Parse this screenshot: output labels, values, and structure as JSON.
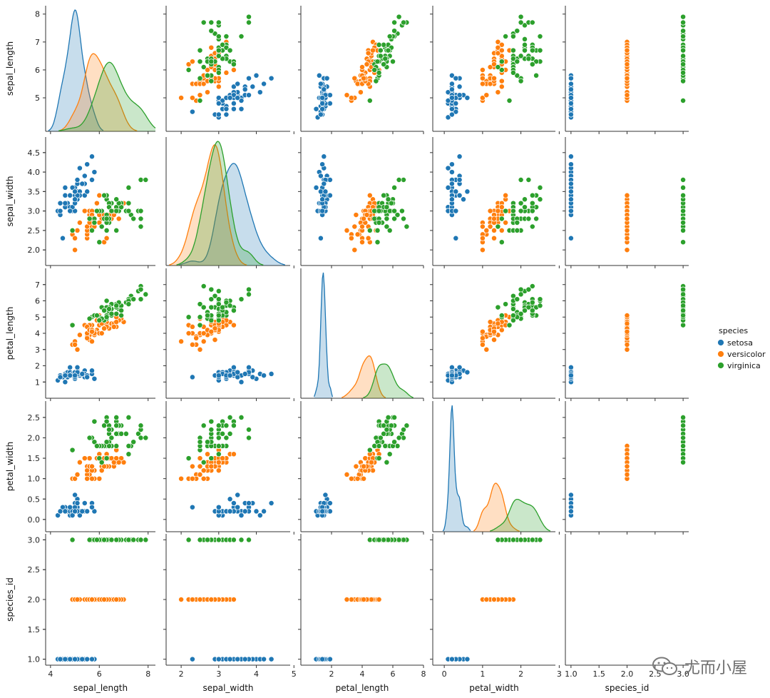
{
  "colors": {
    "setosa": "#1f77b4",
    "versicolor": "#ff7f0e",
    "virginica": "#2ca02c"
  },
  "legend": {
    "title": "species",
    "items": [
      "setosa",
      "versicolor",
      "virginica"
    ]
  },
  "watermark": {
    "text": "尤而小屋",
    "icon": "wechat-icon"
  },
  "chart_data": {
    "type": "scatter",
    "variables": [
      "sepal_length",
      "sepal_width",
      "petal_length",
      "petal_width",
      "species_id"
    ],
    "axis_labels": {
      "sepal_length": "sepal_length",
      "sepal_width": "sepal_width",
      "petal_length": "petal_length",
      "petal_width": "petal_width",
      "species_id": "species_id"
    },
    "ranges": {
      "sepal_length": [
        3.8,
        8.3
      ],
      "sepal_width": [
        1.6,
        4.9
      ],
      "petal_length": [
        0.0,
        8.0
      ],
      "petal_width": [
        -0.3,
        2.9
      ],
      "species_id": [
        0.9,
        3.1
      ]
    },
    "ticks": {
      "sepal_length": [
        4,
        6,
        8
      ],
      "sepal_width": [
        2,
        3,
        4,
        5
      ],
      "petal_length": [
        2,
        4,
        6,
        8
      ],
      "petal_width": [
        0,
        1,
        2,
        3
      ],
      "species_id": [
        1.0,
        1.5,
        2.0,
        2.5,
        3.0
      ]
    },
    "y_ticks": {
      "sepal_length": [
        5,
        6,
        7,
        8
      ],
      "sepal_width": [
        2.0,
        2.5,
        3.0,
        3.5,
        4.0,
        4.5
      ],
      "petal_length": [
        1,
        2,
        3,
        4,
        5,
        6,
        7
      ],
      "petal_width": [
        0.0,
        0.5,
        1.0,
        1.5,
        2.0,
        2.5
      ],
      "species_id": [
        1.0,
        1.5,
        2.0,
        2.5,
        3.0
      ]
    },
    "tick_labels_y": {
      "species_id": [
        "1.0",
        "1.5",
        "2.0",
        "2.5",
        "3.0"
      ],
      "sepal_width": [
        "2.0",
        "2.5",
        "3.0",
        "3.5",
        "4.0",
        "4.5"
      ],
      "petal_width": [
        "0.0",
        "0.5",
        "1.0",
        "1.5",
        "2.0",
        "2.5"
      ]
    },
    "tick_labels_x": {
      "species_id": [
        "1.0",
        "1.5",
        "2.0",
        "2.5",
        "3.0"
      ]
    },
    "series": [
      {
        "name": "setosa",
        "id": 1,
        "points": [
          [
            5.1,
            3.5,
            1.4,
            0.2
          ],
          [
            4.9,
            3.0,
            1.4,
            0.2
          ],
          [
            4.7,
            3.2,
            1.3,
            0.2
          ],
          [
            4.6,
            3.1,
            1.5,
            0.2
          ],
          [
            5.0,
            3.6,
            1.4,
            0.2
          ],
          [
            5.4,
            3.9,
            1.7,
            0.4
          ],
          [
            4.6,
            3.4,
            1.4,
            0.3
          ],
          [
            5.0,
            3.4,
            1.5,
            0.2
          ],
          [
            4.4,
            2.9,
            1.4,
            0.2
          ],
          [
            4.9,
            3.1,
            1.5,
            0.1
          ],
          [
            5.4,
            3.7,
            1.5,
            0.2
          ],
          [
            4.8,
            3.4,
            1.6,
            0.2
          ],
          [
            4.8,
            3.0,
            1.4,
            0.1
          ],
          [
            4.3,
            3.0,
            1.1,
            0.1
          ],
          [
            5.8,
            4.0,
            1.2,
            0.2
          ],
          [
            5.7,
            4.4,
            1.5,
            0.4
          ],
          [
            5.4,
            3.9,
            1.3,
            0.4
          ],
          [
            5.1,
            3.5,
            1.4,
            0.3
          ],
          [
            5.7,
            3.8,
            1.7,
            0.3
          ],
          [
            5.1,
            3.8,
            1.5,
            0.3
          ],
          [
            5.4,
            3.4,
            1.7,
            0.2
          ],
          [
            5.1,
            3.7,
            1.5,
            0.4
          ],
          [
            4.6,
            3.6,
            1.0,
            0.2
          ],
          [
            5.1,
            3.3,
            1.7,
            0.5
          ],
          [
            4.8,
            3.4,
            1.9,
            0.2
          ],
          [
            5.0,
            3.0,
            1.6,
            0.2
          ],
          [
            5.0,
            3.4,
            1.6,
            0.4
          ],
          [
            5.2,
            3.5,
            1.5,
            0.2
          ],
          [
            5.2,
            3.4,
            1.4,
            0.2
          ],
          [
            4.7,
            3.2,
            1.6,
            0.2
          ],
          [
            4.8,
            3.1,
            1.6,
            0.2
          ],
          [
            5.4,
            3.4,
            1.5,
            0.4
          ],
          [
            5.2,
            4.1,
            1.5,
            0.1
          ],
          [
            5.5,
            4.2,
            1.4,
            0.2
          ],
          [
            4.9,
            3.1,
            1.5,
            0.2
          ],
          [
            5.0,
            3.2,
            1.2,
            0.2
          ],
          [
            5.5,
            3.5,
            1.3,
            0.2
          ],
          [
            4.9,
            3.6,
            1.4,
            0.1
          ],
          [
            4.4,
            3.0,
            1.3,
            0.2
          ],
          [
            5.1,
            3.4,
            1.5,
            0.2
          ],
          [
            5.0,
            3.5,
            1.3,
            0.3
          ],
          [
            4.5,
            2.3,
            1.3,
            0.3
          ],
          [
            4.4,
            3.2,
            1.3,
            0.2
          ],
          [
            5.0,
            3.5,
            1.6,
            0.6
          ],
          [
            5.1,
            3.8,
            1.9,
            0.4
          ],
          [
            4.8,
            3.0,
            1.4,
            0.3
          ],
          [
            5.1,
            3.8,
            1.6,
            0.2
          ],
          [
            4.6,
            3.2,
            1.4,
            0.2
          ],
          [
            5.3,
            3.7,
            1.5,
            0.2
          ],
          [
            5.0,
            3.3,
            1.4,
            0.2
          ]
        ]
      },
      {
        "name": "versicolor",
        "id": 2,
        "points": [
          [
            7.0,
            3.2,
            4.7,
            1.4
          ],
          [
            6.4,
            3.2,
            4.5,
            1.5
          ],
          [
            6.9,
            3.1,
            4.9,
            1.5
          ],
          [
            5.5,
            2.3,
            4.0,
            1.3
          ],
          [
            6.5,
            2.8,
            4.6,
            1.5
          ],
          [
            5.7,
            2.8,
            4.5,
            1.3
          ],
          [
            6.3,
            3.3,
            4.7,
            1.6
          ],
          [
            4.9,
            2.4,
            3.3,
            1.0
          ],
          [
            6.6,
            2.9,
            4.6,
            1.3
          ],
          [
            5.2,
            2.7,
            3.9,
            1.4
          ],
          [
            5.0,
            2.0,
            3.5,
            1.0
          ],
          [
            5.9,
            3.0,
            4.2,
            1.5
          ],
          [
            6.0,
            2.2,
            4.0,
            1.0
          ],
          [
            6.1,
            2.9,
            4.7,
            1.4
          ],
          [
            5.6,
            2.9,
            3.6,
            1.3
          ],
          [
            6.7,
            3.1,
            4.4,
            1.4
          ],
          [
            5.6,
            3.0,
            4.5,
            1.5
          ],
          [
            5.8,
            2.7,
            4.1,
            1.0
          ],
          [
            6.2,
            2.2,
            4.5,
            1.5
          ],
          [
            5.6,
            2.5,
            3.9,
            1.1
          ],
          [
            5.9,
            3.2,
            4.8,
            1.8
          ],
          [
            6.1,
            2.8,
            4.0,
            1.3
          ],
          [
            6.3,
            2.5,
            4.9,
            1.5
          ],
          [
            6.1,
            2.8,
            4.7,
            1.2
          ],
          [
            6.4,
            2.9,
            4.3,
            1.3
          ],
          [
            6.6,
            3.0,
            4.4,
            1.4
          ],
          [
            6.8,
            2.8,
            4.8,
            1.4
          ],
          [
            6.7,
            3.0,
            5.0,
            1.7
          ],
          [
            6.0,
            2.9,
            4.5,
            1.5
          ],
          [
            5.7,
            2.6,
            3.5,
            1.0
          ],
          [
            5.5,
            2.4,
            3.8,
            1.1
          ],
          [
            5.5,
            2.4,
            3.7,
            1.0
          ],
          [
            5.8,
            2.7,
            3.9,
            1.2
          ],
          [
            6.0,
            2.7,
            5.1,
            1.6
          ],
          [
            5.4,
            3.0,
            4.5,
            1.5
          ],
          [
            6.0,
            3.4,
            4.5,
            1.6
          ],
          [
            6.7,
            3.1,
            4.7,
            1.5
          ],
          [
            6.3,
            2.3,
            4.4,
            1.3
          ],
          [
            5.6,
            3.0,
            4.1,
            1.3
          ],
          [
            5.5,
            2.5,
            4.0,
            1.3
          ],
          [
            5.5,
            2.6,
            4.4,
            1.2
          ],
          [
            6.1,
            3.0,
            4.6,
            1.4
          ],
          [
            5.8,
            2.6,
            4.0,
            1.2
          ],
          [
            5.0,
            2.3,
            3.3,
            1.0
          ],
          [
            5.6,
            2.7,
            4.2,
            1.3
          ],
          [
            5.7,
            3.0,
            4.2,
            1.2
          ],
          [
            5.7,
            2.9,
            4.2,
            1.3
          ],
          [
            6.2,
            2.9,
            4.3,
            1.3
          ],
          [
            5.1,
            2.5,
            3.0,
            1.1
          ],
          [
            5.7,
            2.8,
            4.1,
            1.3
          ]
        ]
      },
      {
        "name": "virginica",
        "id": 3,
        "points": [
          [
            6.3,
            3.3,
            6.0,
            2.5
          ],
          [
            5.8,
            2.7,
            5.1,
            1.9
          ],
          [
            7.1,
            3.0,
            5.9,
            2.1
          ],
          [
            6.3,
            2.9,
            5.6,
            1.8
          ],
          [
            6.5,
            3.0,
            5.8,
            2.2
          ],
          [
            7.6,
            3.0,
            6.6,
            2.1
          ],
          [
            4.9,
            2.5,
            4.5,
            1.7
          ],
          [
            7.3,
            2.9,
            6.3,
            1.8
          ],
          [
            6.7,
            2.5,
            5.8,
            1.8
          ],
          [
            7.2,
            3.6,
            6.1,
            2.5
          ],
          [
            6.5,
            3.2,
            5.1,
            2.0
          ],
          [
            6.4,
            2.7,
            5.3,
            1.9
          ],
          [
            6.8,
            3.0,
            5.5,
            2.1
          ],
          [
            5.7,
            2.5,
            5.0,
            2.0
          ],
          [
            5.8,
            2.8,
            5.1,
            2.4
          ],
          [
            6.4,
            3.2,
            5.3,
            2.3
          ],
          [
            6.5,
            3.0,
            5.5,
            1.8
          ],
          [
            7.7,
            3.8,
            6.7,
            2.2
          ],
          [
            7.7,
            2.6,
            6.9,
            2.3
          ],
          [
            6.0,
            2.2,
            5.0,
            1.5
          ],
          [
            6.9,
            3.2,
            5.7,
            2.3
          ],
          [
            5.6,
            2.8,
            4.9,
            2.0
          ],
          [
            7.7,
            2.8,
            6.7,
            2.0
          ],
          [
            6.3,
            2.7,
            4.9,
            1.8
          ],
          [
            6.7,
            3.3,
            5.7,
            2.1
          ],
          [
            7.2,
            3.2,
            6.0,
            1.8
          ],
          [
            6.2,
            2.8,
            4.8,
            1.8
          ],
          [
            6.1,
            3.0,
            4.9,
            1.8
          ],
          [
            6.4,
            2.8,
            5.6,
            2.1
          ],
          [
            7.2,
            3.0,
            5.8,
            1.6
          ],
          [
            7.4,
            2.8,
            6.1,
            1.9
          ],
          [
            7.9,
            3.8,
            6.4,
            2.0
          ],
          [
            6.4,
            2.8,
            5.6,
            2.2
          ],
          [
            6.3,
            2.8,
            5.1,
            1.5
          ],
          [
            6.1,
            2.6,
            5.6,
            1.4
          ],
          [
            7.7,
            3.0,
            6.1,
            2.3
          ],
          [
            6.3,
            3.4,
            5.6,
            2.4
          ],
          [
            6.4,
            3.1,
            5.5,
            1.8
          ],
          [
            6.0,
            3.0,
            4.8,
            1.8
          ],
          [
            6.9,
            3.1,
            5.4,
            2.1
          ],
          [
            6.7,
            3.1,
            5.6,
            2.4
          ],
          [
            6.9,
            3.1,
            5.1,
            2.3
          ],
          [
            5.8,
            2.7,
            5.1,
            1.9
          ],
          [
            6.8,
            3.2,
            5.9,
            2.3
          ],
          [
            6.7,
            3.3,
            5.7,
            2.5
          ],
          [
            6.7,
            3.0,
            5.2,
            2.3
          ],
          [
            6.3,
            2.5,
            5.0,
            1.9
          ],
          [
            6.5,
            3.0,
            5.2,
            2.0
          ],
          [
            6.2,
            3.4,
            5.4,
            2.3
          ],
          [
            5.9,
            3.0,
            5.1,
            1.8
          ]
        ]
      }
    ],
    "diagonal": "kde"
  }
}
